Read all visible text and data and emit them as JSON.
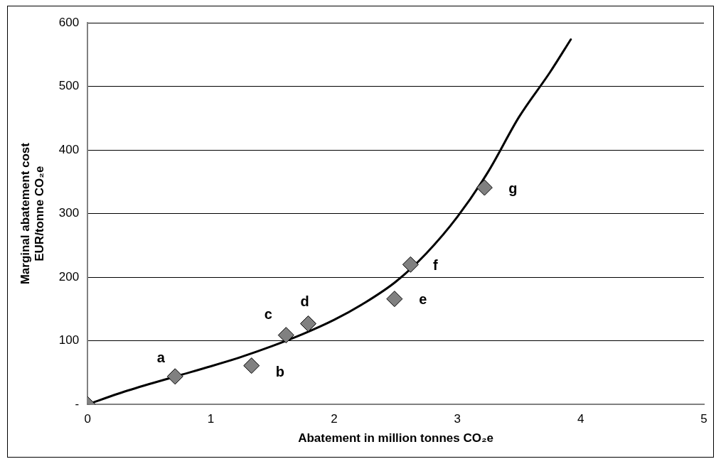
{
  "chart_data": {
    "type": "scatter",
    "xlabel": "Abatement in million tonnes CO₂e",
    "ylabel": "Marginal abatement cost\nEUR/tonne CO₂e",
    "xlim": [
      0,
      5
    ],
    "xticks": [
      0,
      1,
      2,
      3,
      4,
      5
    ],
    "ylim": [
      0,
      600
    ],
    "yticks": [
      {
        "value": 0,
        "label": "-"
      },
      100,
      200,
      300,
      400,
      500,
      600
    ],
    "grid": "y",
    "legend": false,
    "series": [
      {
        "type": "line",
        "color": "#000000",
        "marker": "none",
        "x": [
          0,
          0.25,
          0.5,
          0.75,
          1,
          1.25,
          1.5,
          1.75,
          2,
          2.25,
          2.5,
          2.75,
          3,
          3.25,
          3.5,
          3.75,
          3.92
        ],
        "values": [
          0,
          17,
          32,
          46,
          60,
          75,
          92,
          111,
          133,
          160,
          193,
          238,
          295,
          366,
          452,
          522,
          574
        ]
      },
      {
        "type": "scatter",
        "color": "#808080",
        "marker": "diamond",
        "x": [
          0,
          0.71,
          1.33,
          1.61,
          1.79,
          2.49,
          2.62,
          3.22
        ],
        "values": [
          0,
          44,
          61,
          109,
          127,
          166,
          220,
          341
        ]
      }
    ],
    "annotations": [
      {
        "text": "a",
        "x": 0.71,
        "y": 44
      },
      {
        "text": "b",
        "x": 1.33,
        "y": 61
      },
      {
        "text": "c",
        "x": 1.61,
        "y": 109
      },
      {
        "text": "d",
        "x": 1.79,
        "y": 127
      },
      {
        "text": "e",
        "x": 2.49,
        "y": 166
      },
      {
        "text": "f",
        "x": 2.62,
        "y": 220
      },
      {
        "text": "g",
        "x": 3.22,
        "y": 341
      }
    ]
  }
}
